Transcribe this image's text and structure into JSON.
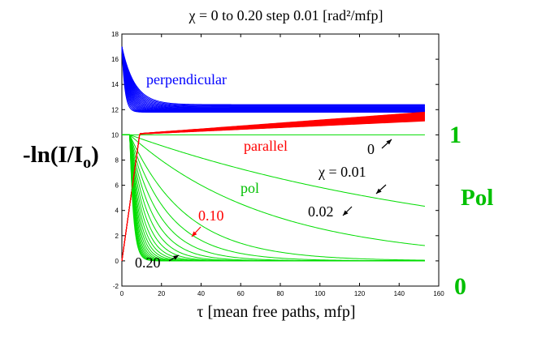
{
  "chart_data": {
    "type": "line",
    "title": "χ = 0 to 0.20 step 0.01  [rad²/mfp]",
    "xlabel": "τ  [mean free  paths, mfp]",
    "ylabel": "-ln(I/Io)",
    "ylabel_main": "-ln(I/I",
    "ylabel_sub": "o",
    "ylabel_close": ")",
    "y2label": "Pol",
    "y2_ticks": [
      "1",
      "0"
    ],
    "xlim": [
      0,
      160
    ],
    "ylim": [
      -2,
      18
    ],
    "x_ticks": [
      "0",
      "20",
      "40",
      "60",
      "80",
      "100",
      "120",
      "140",
      "160"
    ],
    "y_ticks": [
      "-2",
      "0",
      "2",
      "4",
      "6",
      "8",
      "10",
      "12",
      "14",
      "16",
      "18"
    ],
    "grid": false,
    "annotations": {
      "perpendicular": "perpendicular",
      "parallel": "parallel",
      "pol": "pol",
      "chi0": "0",
      "chi001": "χ = 0.01",
      "chi002": "0.02",
      "chi010": "0.10",
      "chi020": "0.20"
    },
    "colors": {
      "perpendicular": "#0000ff",
      "parallel": "#ff0000",
      "pol": "#00dd00",
      "axis": "#000000"
    },
    "series_summary": {
      "chi_min": 0,
      "chi_max": 0.2,
      "chi_step": 0.01,
      "tau_max": 153,
      "perpendicular_start": 17,
      "perpendicular_end_min": 11.8,
      "perpendicular_end_max": 12.4,
      "parallel_end_min": 11.1,
      "parallel_end_max": 11.8,
      "pol_plateau_chi0": 10,
      "pol_end_chi001": 4.6,
      "pol_end_chi002": 2.6,
      "pol_floor": 0
    }
  }
}
